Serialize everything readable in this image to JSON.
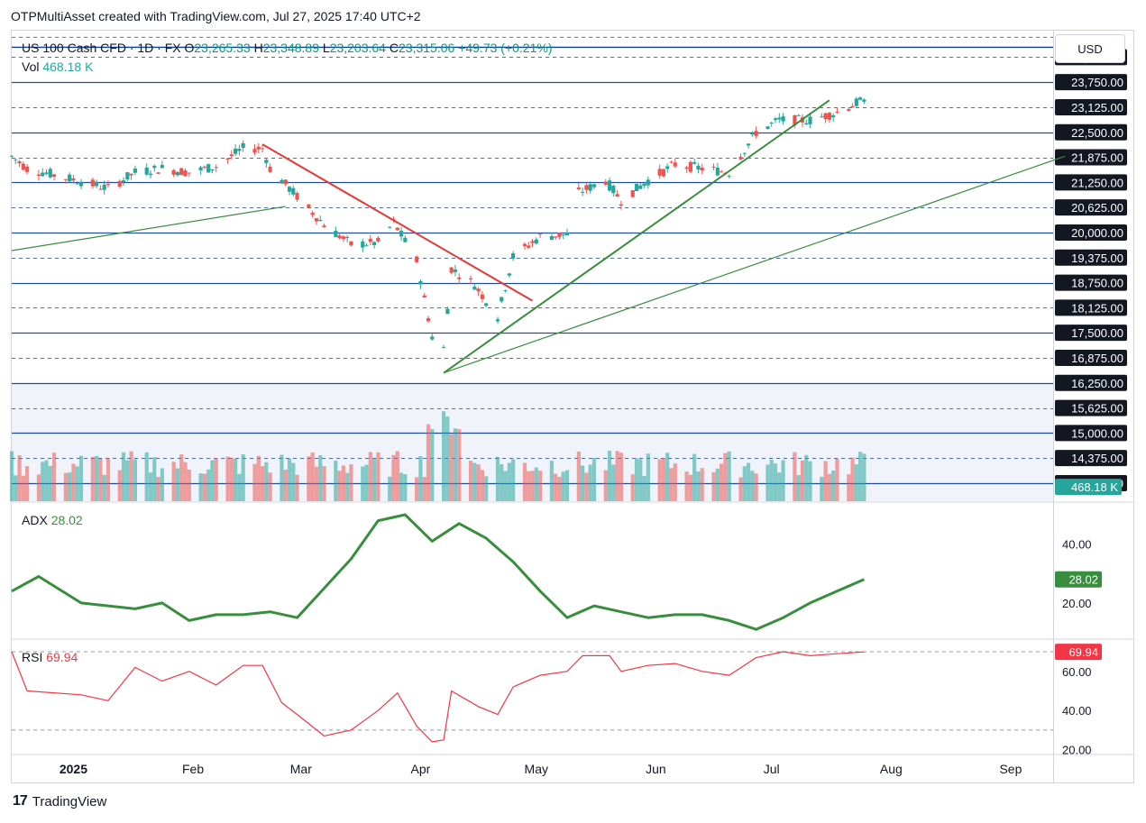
{
  "header": {
    "title": "OTPMultiAsset created with TradingView.com, Jul 27, 2025 17:40 UTC+2"
  },
  "symbol": {
    "name": "US 100 Cash CFD · 1D · FX",
    "open_label": "O",
    "open": "23,265.33",
    "high_label": "H",
    "high": "23,348.89",
    "low_label": "L",
    "low": "23,203.64",
    "close_label": "C",
    "close": "23,315.06",
    "change": "+49.73 (+0.21%)"
  },
  "volume": {
    "label": "Vol",
    "value": "468.18 K",
    "badge": "468.18 K"
  },
  "currency": "USD",
  "price_levels": [
    "24,375.00",
    "23,750.00",
    "23,125.00",
    "22,500.00",
    "21,875.00",
    "21,250.00",
    "20,625.00",
    "20,000.00",
    "19,375.00",
    "18,750.00",
    "18,125.00",
    "17,500.00",
    "16,875.00",
    "16,250.00",
    "15,625.00",
    "15,000.00",
    "14,375.00",
    "13,750.00"
  ],
  "time_axis": [
    "2025",
    "Feb",
    "Mar",
    "Apr",
    "May",
    "Jun",
    "Jul",
    "Aug",
    "Sep"
  ],
  "adx": {
    "label": "ADX",
    "value": "28.02",
    "ticks": [
      "40.00",
      "20.00"
    ]
  },
  "rsi": {
    "label": "RSI",
    "value": "69.94",
    "ticks": [
      "60.00",
      "40.00",
      "20.00"
    ]
  },
  "footer": {
    "brand": "TradingView"
  },
  "colors": {
    "up": "#26a69a",
    "down": "#ef5350",
    "trend_green": "#388e3c",
    "trend_red": "#e53935",
    "level_line": "#0b3d91",
    "rsi": "#f23645"
  },
  "chart_data": [
    {
      "type": "candlestick",
      "title": "US 100 Cash CFD · 1D · FX",
      "x_range": [
        "2024-12-16",
        "2025-09-12"
      ],
      "ylim": [
        13300,
        24900
      ],
      "horizontal_levels": [
        24375,
        23750,
        23125,
        22500,
        21875,
        21250,
        20625,
        20000,
        19375,
        18750,
        18125,
        17500,
        16875,
        16250,
        15625,
        15000,
        14375,
        13750
      ],
      "close_path": [
        [
          "2024-12-16",
          21900
        ],
        [
          "2024-12-20",
          21600
        ],
        [
          "2025-01-02",
          21300
        ],
        [
          "2025-01-10",
          21100
        ],
        [
          "2025-01-17",
          21500
        ],
        [
          "2025-01-24",
          21600
        ],
        [
          "2025-01-31",
          21500
        ],
        [
          "2025-02-07",
          21650
        ],
        [
          "2025-02-14",
          22100
        ],
        [
          "2025-02-19",
          22100
        ],
        [
          "2025-02-21",
          21600
        ],
        [
          "2025-02-28",
          20900
        ],
        [
          "2025-03-07",
          20200
        ],
        [
          "2025-03-14",
          19700
        ],
        [
          "2025-03-21",
          19750
        ],
        [
          "2025-03-25",
          20250
        ],
        [
          "2025-03-31",
          19300
        ],
        [
          "2025-04-04",
          17400
        ],
        [
          "2025-04-07",
          17100
        ],
        [
          "2025-04-09",
          19100
        ],
        [
          "2025-04-15",
          18700
        ],
        [
          "2025-04-21",
          17900
        ],
        [
          "2025-04-25",
          19400
        ],
        [
          "2025-05-02",
          19900
        ],
        [
          "2025-05-09",
          19950
        ],
        [
          "2025-05-12",
          21000
        ],
        [
          "2025-05-19",
          21300
        ],
        [
          "2025-05-23",
          20800
        ],
        [
          "2025-05-30",
          21300
        ],
        [
          "2025-06-06",
          21700
        ],
        [
          "2025-06-13",
          21600
        ],
        [
          "2025-06-20",
          21500
        ],
        [
          "2025-06-27",
          22500
        ],
        [
          "2025-07-03",
          22800
        ],
        [
          "2025-07-11",
          22800
        ],
        [
          "2025-07-18",
          23000
        ],
        [
          "2025-07-25",
          23315
        ]
      ],
      "trend_lines": [
        {
          "color": "red",
          "from": [
            "2025-02-19",
            22200
          ],
          "to": [
            "2025-04-30",
            18300
          ]
        },
        {
          "color": "green",
          "from": [
            "2025-04-07",
            16500
          ],
          "to": [
            "2025-07-16",
            23300
          ]
        },
        {
          "color": "green",
          "from": [
            "2025-04-07",
            16500
          ],
          "to": [
            "2025-09-15",
            21900
          ]
        },
        {
          "color": "green",
          "from": [
            "2024-12-16",
            19550
          ],
          "to": [
            "2025-02-25",
            20650
          ]
        }
      ]
    },
    {
      "type": "bar",
      "title": "Vol",
      "last_value": "468.18 K"
    },
    {
      "type": "line",
      "title": "ADX",
      "ylim": [
        8,
        54
      ],
      "series": [
        {
          "values": [
            [
              "2024-12-16",
              24
            ],
            [
              "2024-12-23",
              29
            ],
            [
              "2025-01-03",
              20
            ],
            [
              "2025-01-10",
              19
            ],
            [
              "2025-01-17",
              18
            ],
            [
              "2025-01-24",
              20
            ],
            [
              "2025-01-31",
              14
            ],
            [
              "2025-02-07",
              16
            ],
            [
              "2025-02-14",
              16
            ],
            [
              "2025-02-21",
              17
            ],
            [
              "2025-02-28",
              15
            ],
            [
              "2025-03-07",
              25
            ],
            [
              "2025-03-14",
              35
            ],
            [
              "2025-03-21",
              48
            ],
            [
              "2025-03-28",
              50
            ],
            [
              "2025-04-04",
              41
            ],
            [
              "2025-04-11",
              47
            ],
            [
              "2025-04-18",
              42
            ],
            [
              "2025-04-25",
              34
            ],
            [
              "2025-05-02",
              24
            ],
            [
              "2025-05-09",
              15
            ],
            [
              "2025-05-16",
              19
            ],
            [
              "2025-05-23",
              17
            ],
            [
              "2025-05-30",
              15
            ],
            [
              "2025-06-06",
              16
            ],
            [
              "2025-06-13",
              16
            ],
            [
              "2025-06-20",
              14
            ],
            [
              "2025-06-27",
              11
            ],
            [
              "2025-07-04",
              15
            ],
            [
              "2025-07-11",
              20
            ],
            [
              "2025-07-18",
              24
            ],
            [
              "2025-07-25",
              28.02
            ]
          ]
        }
      ]
    },
    {
      "type": "line",
      "title": "RSI",
      "ylim": [
        18,
        76
      ],
      "guide_levels": [
        70,
        30
      ],
      "series": [
        {
          "values": [
            [
              "2024-12-16",
              70
            ],
            [
              "2024-12-20",
              50
            ],
            [
              "2025-01-03",
              48
            ],
            [
              "2025-01-10",
              45
            ],
            [
              "2025-01-17",
              62
            ],
            [
              "2025-01-24",
              55
            ],
            [
              "2025-01-31",
              60
            ],
            [
              "2025-02-07",
              53
            ],
            [
              "2025-02-14",
              63
            ],
            [
              "2025-02-19",
              63
            ],
            [
              "2025-02-24",
              44
            ],
            [
              "2025-02-28",
              38
            ],
            [
              "2025-03-07",
              27
            ],
            [
              "2025-03-14",
              30
            ],
            [
              "2025-03-21",
              40
            ],
            [
              "2025-03-26",
              49
            ],
            [
              "2025-03-31",
              32
            ],
            [
              "2025-04-04",
              24
            ],
            [
              "2025-04-07",
              25
            ],
            [
              "2025-04-09",
              50
            ],
            [
              "2025-04-16",
              42
            ],
            [
              "2025-04-21",
              38
            ],
            [
              "2025-04-25",
              52
            ],
            [
              "2025-05-02",
              58
            ],
            [
              "2025-05-09",
              60
            ],
            [
              "2025-05-13",
              68
            ],
            [
              "2025-05-20",
              68
            ],
            [
              "2025-05-23",
              60
            ],
            [
              "2025-05-30",
              63
            ],
            [
              "2025-06-06",
              64
            ],
            [
              "2025-06-13",
              60
            ],
            [
              "2025-06-20",
              58
            ],
            [
              "2025-06-27",
              67
            ],
            [
              "2025-07-04",
              70
            ],
            [
              "2025-07-11",
              68
            ],
            [
              "2025-07-18",
              69
            ],
            [
              "2025-07-25",
              69.94
            ]
          ]
        }
      ]
    }
  ]
}
